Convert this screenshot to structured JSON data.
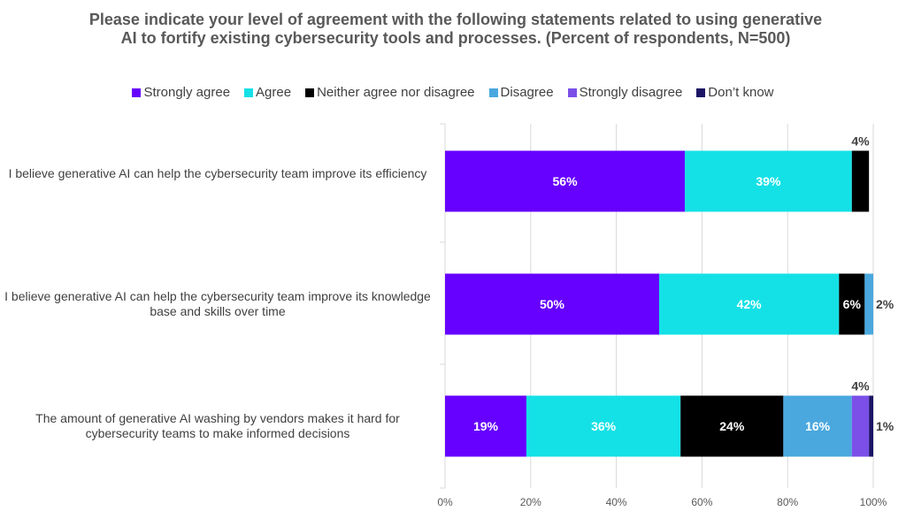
{
  "chart_data": {
    "type": "bar",
    "orientation": "horizontal",
    "stacked": true,
    "title": "Please indicate your level of agreement with the following statements related to using generative AI to fortify existing cybersecurity tools and processes. (Percent of respondents, N=500)",
    "categories": [
      "I believe generative AI can help the cybersecurity team improve its efficiency",
      "I believe generative AI can help the cybersecurity team improve its knowledge base and skills over time",
      "The amount of generative AI washing by vendors makes it hard for cybersecurity teams to make informed decisions"
    ],
    "series": [
      {
        "name": "Strongly agree",
        "color": "#6600FF",
        "values": [
          56,
          50,
          19
        ],
        "labels": [
          "56%",
          "50%",
          "19%"
        ]
      },
      {
        "name": "Agree",
        "color": "#14E1E6",
        "values": [
          39,
          42,
          36
        ],
        "labels": [
          "39%",
          "42%",
          "36%"
        ]
      },
      {
        "name": "Neither agree nor disagree",
        "color": "#000000",
        "values": [
          4,
          6,
          24
        ],
        "labels": [
          "4%",
          "6%",
          "24%"
        ]
      },
      {
        "name": "Disagree",
        "color": "#4AA8DE",
        "values": [
          0,
          2,
          16
        ],
        "labels": [
          "",
          "2%",
          "16%"
        ]
      },
      {
        "name": "Strongly disagree",
        "color": "#7B4FE8",
        "values": [
          0,
          0,
          4
        ],
        "labels": [
          "",
          "",
          "4%"
        ]
      },
      {
        "name": "Don’t know",
        "color": "#1B1464",
        "values": [
          0,
          0,
          1
        ],
        "labels": [
          "",
          "",
          "1%"
        ]
      }
    ],
    "xlim": [
      0,
      100
    ],
    "xticks": [
      "0%",
      "20%",
      "40%",
      "60%",
      "80%",
      "100%"
    ],
    "grid": true,
    "legend_position": "top"
  }
}
